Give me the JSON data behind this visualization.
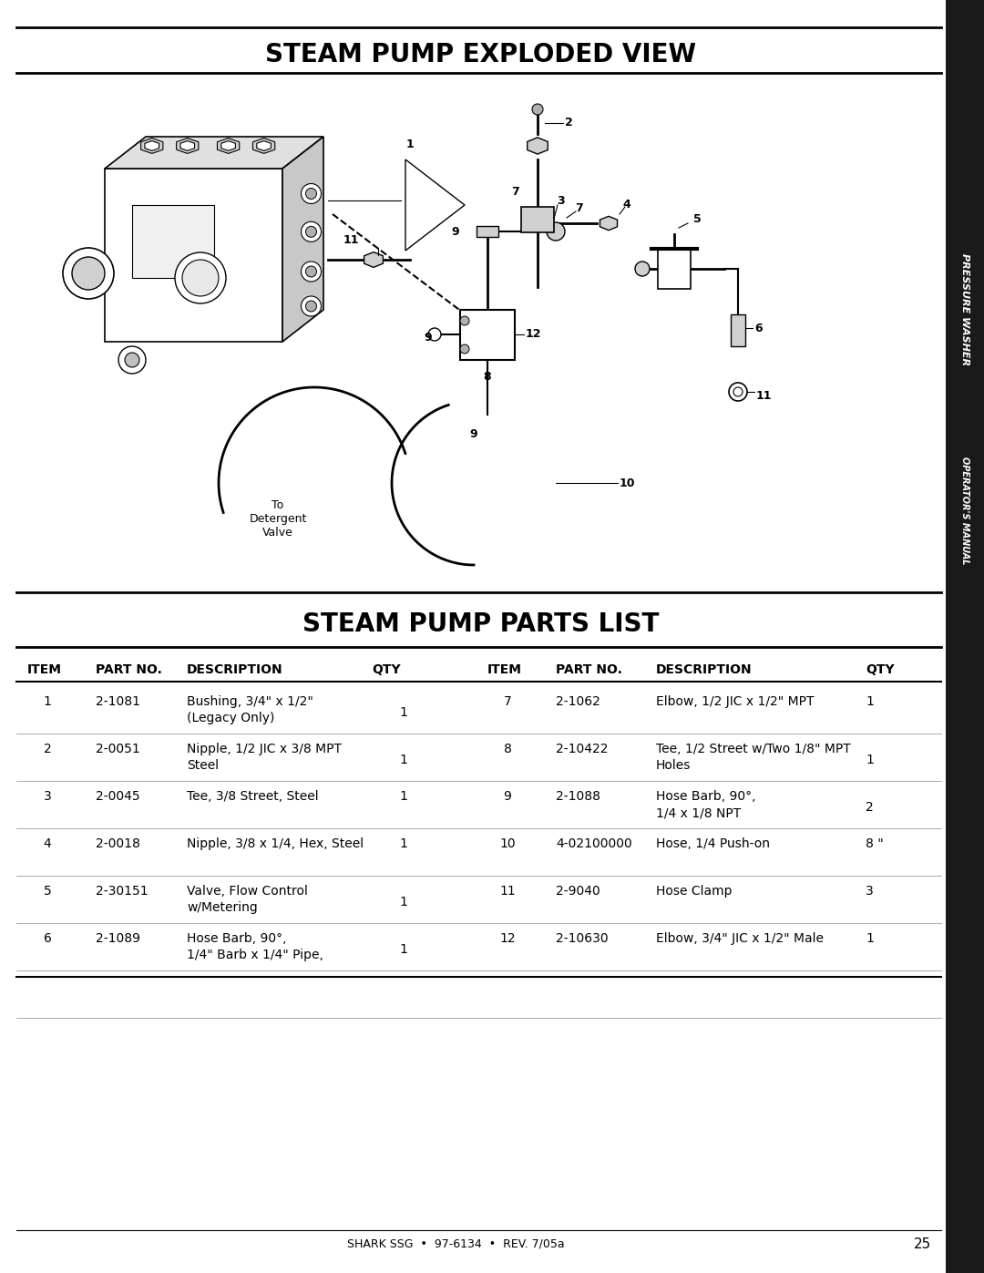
{
  "title1": "STEAM PUMP EXPLODED VIEW",
  "title2": "STEAM PUMP PARTS LIST",
  "footer": "SHARK SSG  •  97-6134  •  REV. 7/05a",
  "page_number": "25",
  "sidebar_text": "PRESSURE WASHER",
  "sidebar_text2": "OPERATOR'S MANUAL",
  "parts_left": [
    {
      "item": "1",
      "part_no": "2-1081",
      "description": "Bushing, 3/4\" x 1/2\"\n(Legacy Only)",
      "qty": "1"
    },
    {
      "item": "2",
      "part_no": "2-0051",
      "description": "Nipple, 1/2 JIC x 3/8 MPT\nSteel",
      "qty": "1"
    },
    {
      "item": "3",
      "part_no": "2-0045",
      "description": "Tee, 3/8 Street, Steel",
      "qty": "1"
    },
    {
      "item": "4",
      "part_no": "2-0018",
      "description": "Nipple, 3/8 x 1/4, Hex, Steel",
      "qty": "1"
    },
    {
      "item": "5",
      "part_no": "2-30151",
      "description": "Valve, Flow Control\nw/Metering",
      "qty": "1"
    },
    {
      "item": "6",
      "part_no": "2-1089",
      "description": "Hose Barb, 90°,\n1/4\" Barb x 1/4\" Pipe,",
      "qty": "1"
    }
  ],
  "parts_right": [
    {
      "item": "7",
      "part_no": "2-1062",
      "description": "Elbow, 1/2 JIC x 1/2\" MPT",
      "qty": "1"
    },
    {
      "item": "8",
      "part_no": "2-10422",
      "description": "Tee, 1/2 Street w/Two 1/8\" MPT\nHoles",
      "qty": "1"
    },
    {
      "item": "9",
      "part_no": "2-1088",
      "description": "Hose Barb, 90°,\n1/4 x 1/8 NPT",
      "qty": "2"
    },
    {
      "item": "10",
      "part_no": "4-02100000",
      "description": "Hose, 1/4 Push-on",
      "qty": "8 \""
    },
    {
      "item": "11",
      "part_no": "2-9040",
      "description": "Hose Clamp",
      "qty": "3"
    },
    {
      "item": "12",
      "part_no": "2-10630",
      "description": "Elbow, 3/4\" JIC x 1/2\" Male",
      "qty": "1"
    }
  ],
  "bg_color": "#ffffff",
  "text_color": "#000000",
  "sidebar_bg": "#1a1a1a"
}
